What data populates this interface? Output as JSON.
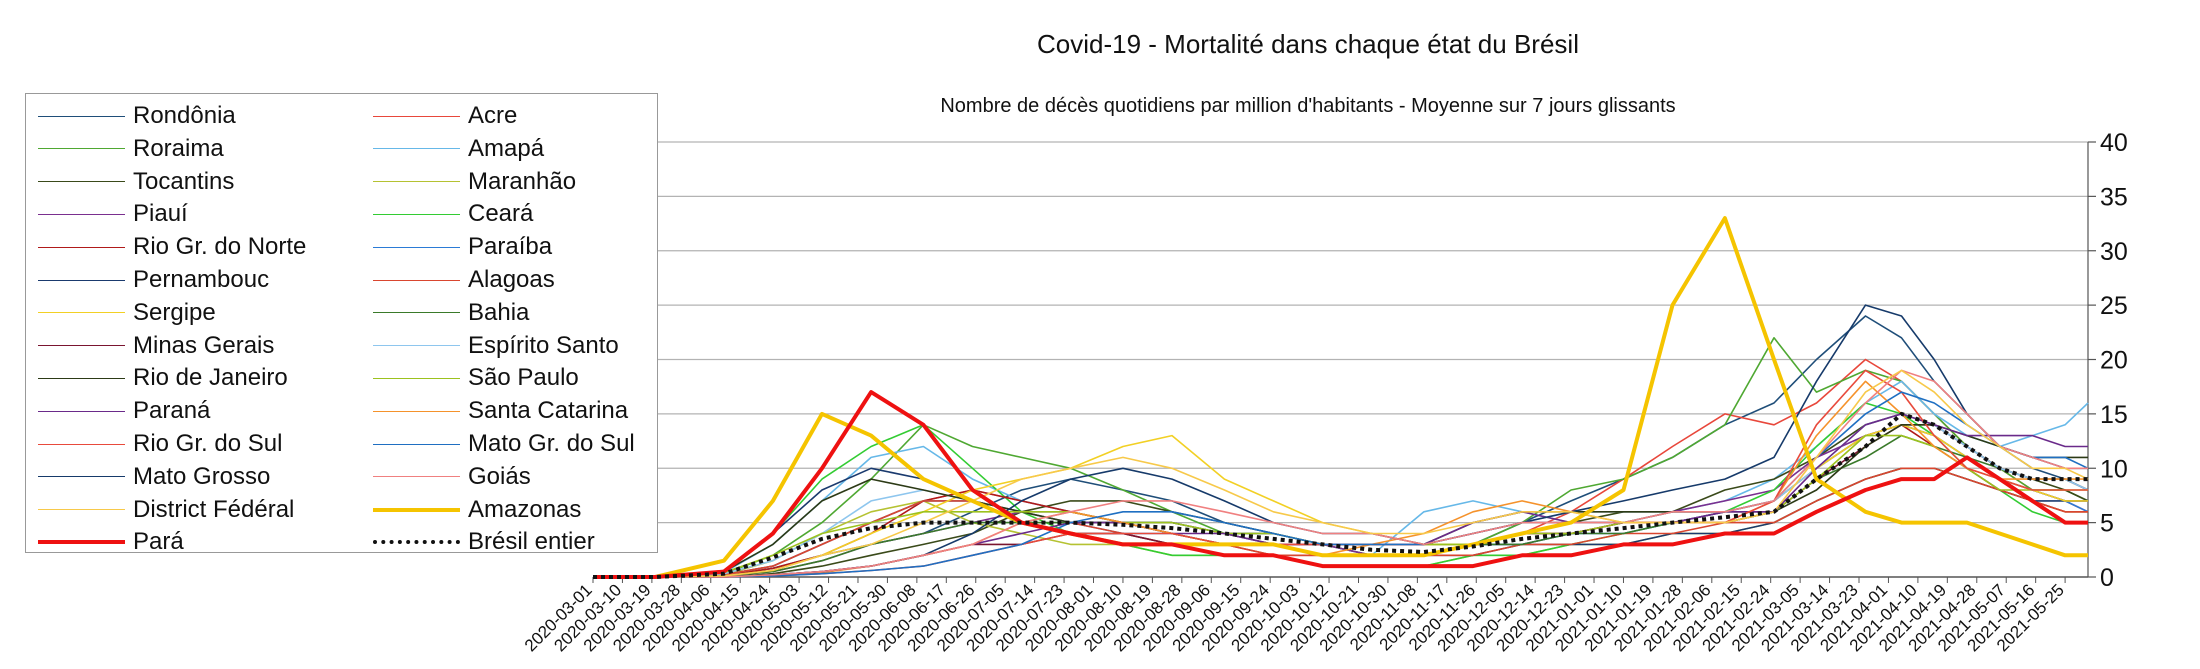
{
  "chart_data": {
    "type": "line",
    "title": "Covid-19 - Mortalité dans chaque état du Brésil",
    "subtitle": "Nombre de décès quotidiens par million d'habitants - Moyenne sur 7 jours glissants",
    "ylim": [
      0,
      40
    ],
    "yticks": [
      0,
      5,
      10,
      15,
      20,
      25,
      30,
      35,
      40
    ],
    "y_axis_side": "right",
    "grid": "horizontal",
    "legend_position": "left",
    "x_tick_labels": [
      "2020-03-01",
      "2020-03-10",
      "2020-03-19",
      "2020-03-28",
      "2020-04-06",
      "2020-04-15",
      "2020-04-24",
      "2020-05-03",
      "2020-05-12",
      "2020-05-21",
      "2020-05-30",
      "2020-06-08",
      "2020-06-17",
      "2020-06-26",
      "2020-07-05",
      "2020-07-14",
      "2020-07-23",
      "2020-08-01",
      "2020-08-10",
      "2020-08-19",
      "2020-08-28",
      "2020-09-06",
      "2020-09-15",
      "2020-09-24",
      "2020-10-03",
      "2020-10-12",
      "2020-10-21",
      "2020-10-30",
      "2020-11-08",
      "2020-11-17",
      "2020-11-26",
      "2020-12-05",
      "2020-12-14",
      "2020-12-23",
      "2021-01-01",
      "2021-01-10",
      "2021-01-19",
      "2021-01-28",
      "2021-02-06",
      "2021-02-15",
      "2021-02-24",
      "2021-03-05",
      "2021-03-14",
      "2021-03-23",
      "2021-04-01",
      "2021-04-10",
      "2021-04-19",
      "2021-04-28",
      "2021-05-07",
      "2021-05-16",
      "2021-05-25"
    ],
    "x_points": [
      "2020-03-01",
      "2020-03-20",
      "2020-04-10",
      "2020-04-25",
      "2020-05-10",
      "2020-05-25",
      "2020-06-10",
      "2020-06-25",
      "2020-07-10",
      "2020-07-25",
      "2020-08-10",
      "2020-08-25",
      "2020-09-10",
      "2020-09-25",
      "2020-10-10",
      "2020-10-25",
      "2020-11-10",
      "2020-11-25",
      "2020-12-10",
      "2020-12-25",
      "2021-01-10",
      "2021-01-25",
      "2021-02-10",
      "2021-02-25",
      "2021-03-10",
      "2021-03-25",
      "2021-04-05",
      "2021-04-15",
      "2021-04-25",
      "2021-05-05",
      "2021-05-15",
      "2021-05-25",
      "2021-06-01"
    ],
    "series": [
      {
        "name": "Rondônia",
        "color": "#1f4e79",
        "width": 1.6,
        "values": [
          0,
          0,
          0.1,
          0.8,
          2,
          3,
          4,
          6,
          8,
          9,
          8,
          7,
          5,
          4,
          3,
          2,
          2,
          3,
          5,
          7,
          9,
          11,
          14,
          16,
          20,
          24,
          22,
          18,
          15,
          12,
          10,
          9,
          8
        ]
      },
      {
        "name": "Acre",
        "color": "#e8473b",
        "width": 1.6,
        "values": [
          0,
          0,
          0.2,
          1,
          3,
          5,
          7,
          8,
          7,
          6,
          5,
          4,
          3,
          3,
          2,
          2,
          2,
          3,
          4,
          6,
          9,
          12,
          15,
          14,
          16,
          20,
          18,
          15,
          12,
          10,
          8,
          7,
          6
        ]
      },
      {
        "name": "Roraima",
        "color": "#4fa832",
        "width": 1.6,
        "values": [
          0,
          0,
          0.3,
          2,
          5,
          9,
          14,
          12,
          11,
          10,
          8,
          6,
          4,
          3,
          3,
          2,
          2,
          3,
          5,
          8,
          9,
          11,
          14,
          22,
          17,
          19,
          18,
          15,
          12,
          10,
          8,
          8,
          7
        ]
      },
      {
        "name": "Amapá",
        "color": "#66b8e8",
        "width": 1.6,
        "values": [
          0,
          0,
          0.4,
          3,
          7,
          11,
          12,
          9,
          7,
          6,
          5,
          4,
          3,
          3,
          2,
          2,
          6,
          7,
          6,
          5,
          5,
          6,
          7,
          9,
          12,
          16,
          18,
          15,
          13,
          12,
          13,
          14,
          16
        ]
      },
      {
        "name": "Tocantins",
        "color": "#3a4a1a",
        "width": 1.6,
        "values": [
          0,
          0,
          0,
          0.3,
          1,
          2,
          3,
          4,
          6,
          7,
          7,
          6,
          5,
          4,
          3,
          3,
          3,
          3,
          4,
          5,
          6,
          6,
          8,
          9,
          11,
          14,
          15,
          14,
          12,
          10,
          9,
          8,
          7
        ]
      },
      {
        "name": "Maranhão",
        "color": "#b5c232",
        "width": 1.6,
        "values": [
          0,
          0,
          0.2,
          1.5,
          4,
          6,
          7,
          5,
          4,
          3,
          3,
          2,
          2,
          2,
          1,
          1,
          1,
          2,
          2,
          3,
          3,
          4,
          4,
          5,
          7,
          9,
          10,
          10,
          9,
          8,
          7,
          6,
          6
        ]
      },
      {
        "name": "Piauí",
        "color": "#7a2f8f",
        "width": 1.6,
        "values": [
          0,
          0,
          0.1,
          0.5,
          1.5,
          3,
          4,
          5,
          6,
          6,
          5,
          5,
          4,
          3,
          3,
          2,
          2,
          3,
          3,
          4,
          5,
          6,
          7,
          8,
          11,
          13,
          14,
          13,
          11,
          9,
          8,
          7,
          7
        ]
      },
      {
        "name": "Ceará",
        "color": "#33cc33",
        "width": 1.6,
        "values": [
          0,
          0,
          0.5,
          4,
          9,
          12,
          14,
          10,
          6,
          4,
          3,
          2,
          2,
          2,
          1,
          1,
          1,
          2,
          2,
          3,
          4,
          5,
          6,
          8,
          12,
          16,
          15,
          13,
          10,
          8,
          6,
          5,
          5
        ]
      },
      {
        "name": "Rio Gr. do Norte",
        "color": "#b01a1a",
        "width": 1.6,
        "values": [
          0,
          0,
          0.1,
          0.8,
          2,
          4,
          7,
          8,
          7,
          6,
          5,
          4,
          3,
          2,
          2,
          2,
          2,
          3,
          4,
          4,
          5,
          5,
          6,
          7,
          10,
          13,
          14,
          12,
          10,
          8,
          7,
          6,
          6
        ]
      },
      {
        "name": "Paraíba",
        "color": "#2b7bd6",
        "width": 1.6,
        "values": [
          0,
          0,
          0.2,
          1,
          3,
          5,
          7,
          7,
          6,
          5,
          4,
          4,
          3,
          3,
          2,
          2,
          2,
          3,
          3,
          4,
          4,
          5,
          6,
          7,
          10,
          13,
          14,
          13,
          11,
          9,
          8,
          7,
          6
        ]
      },
      {
        "name": "Pernambouc",
        "color": "#1a3a6e",
        "width": 1.6,
        "values": [
          0,
          0,
          0.6,
          4,
          8,
          10,
          9,
          7,
          5,
          4,
          4,
          3,
          3,
          3,
          2,
          2,
          2,
          2,
          3,
          3,
          3,
          4,
          4,
          5,
          7,
          9,
          10,
          10,
          9,
          8,
          7,
          7,
          7
        ]
      },
      {
        "name": "Alagoas",
        "color": "#d9462f",
        "width": 1.6,
        "values": [
          0,
          0,
          0.2,
          1,
          3,
          5,
          7,
          7,
          6,
          5,
          4,
          3,
          3,
          2,
          2,
          2,
          2,
          2,
          3,
          3,
          4,
          4,
          5,
          5,
          7,
          9,
          10,
          10,
          9,
          8,
          7,
          6,
          6
        ]
      },
      {
        "name": "Sergipe",
        "color": "#f2d024",
        "width": 1.6,
        "values": [
          0,
          0,
          0.1,
          0.6,
          2,
          4,
          6,
          8,
          9,
          10,
          12,
          13,
          9,
          7,
          5,
          4,
          3,
          3,
          4,
          5,
          5,
          6,
          6,
          7,
          10,
          13,
          14,
          13,
          11,
          9,
          8,
          7,
          7
        ]
      },
      {
        "name": "Bahia",
        "color": "#3a7a2a",
        "width": 1.6,
        "values": [
          0,
          0,
          0.1,
          0.5,
          1.5,
          3,
          4,
          5,
          5,
          5,
          5,
          4,
          3,
          3,
          2,
          2,
          2,
          3,
          3,
          4,
          4,
          5,
          5,
          6,
          9,
          11,
          13,
          12,
          11,
          10,
          9,
          9,
          8
        ]
      },
      {
        "name": "Minas Gerais",
        "color": "#7a1530",
        "width": 1.6,
        "values": [
          0,
          0,
          0,
          0.2,
          0.5,
          1,
          2,
          3,
          3,
          4,
          4,
          3,
          3,
          3,
          2,
          2,
          2,
          3,
          4,
          4,
          5,
          5,
          5,
          6,
          9,
          12,
          14,
          14,
          12,
          10,
          9,
          9,
          8
        ]
      },
      {
        "name": "Espírito Santo",
        "color": "#8ec6ee",
        "width": 1.6,
        "values": [
          0,
          0,
          0.3,
          1.5,
          4,
          7,
          8,
          7,
          6,
          5,
          5,
          5,
          4,
          4,
          3,
          3,
          3,
          4,
          5,
          6,
          6,
          6,
          6,
          7,
          10,
          14,
          15,
          14,
          12,
          10,
          9,
          9,
          8
        ]
      },
      {
        "name": "Rio de Janeiro",
        "color": "#2c3a16",
        "width": 1.6,
        "values": [
          0,
          0,
          0.5,
          3,
          7,
          9,
          8,
          7,
          6,
          5,
          5,
          5,
          4,
          4,
          3,
          3,
          3,
          5,
          6,
          6,
          6,
          6,
          6,
          6,
          8,
          12,
          14,
          14,
          13,
          12,
          11,
          11,
          11
        ]
      },
      {
        "name": "São Paulo",
        "color": "#9cc21e",
        "width": 1.6,
        "values": [
          0,
          0,
          0.4,
          2,
          4,
          5,
          6,
          6,
          6,
          6,
          5,
          5,
          4,
          4,
          3,
          3,
          3,
          3,
          4,
          4,
          5,
          5,
          5,
          6,
          9,
          13,
          13,
          12,
          10,
          8,
          8,
          8,
          8
        ]
      },
      {
        "name": "Paraná",
        "color": "#6a2a8a",
        "width": 1.6,
        "values": [
          0,
          0,
          0,
          0.2,
          0.5,
          1,
          2,
          3,
          4,
          5,
          5,
          4,
          4,
          3,
          3,
          3,
          3,
          5,
          6,
          5,
          5,
          5,
          6,
          6,
          10,
          14,
          15,
          14,
          13,
          13,
          13,
          12,
          12
        ]
      },
      {
        "name": "Santa Catarina",
        "color": "#f5922b",
        "width": 1.6,
        "values": [
          0,
          0,
          0,
          0.2,
          0.4,
          1,
          2,
          3,
          5,
          6,
          5,
          4,
          3,
          3,
          2,
          3,
          4,
          6,
          7,
          6,
          5,
          5,
          5,
          7,
          13,
          18,
          15,
          12,
          10,
          9,
          9,
          9,
          9
        ]
      },
      {
        "name": "Rio Gr. do Sul",
        "color": "#e84a3c",
        "width": 1.6,
        "values": [
          0,
          0,
          0,
          0.1,
          0.3,
          0.6,
          1,
          2,
          3,
          4,
          4,
          4,
          3,
          3,
          3,
          3,
          3,
          4,
          5,
          5,
          5,
          5,
          5,
          7,
          14,
          19,
          17,
          13,
          10,
          9,
          8,
          8,
          8
        ]
      },
      {
        "name": "Mato Gr. do Sul",
        "color": "#1f6fc2",
        "width": 1.6,
        "values": [
          0,
          0,
          0,
          0.1,
          0.3,
          0.6,
          1,
          2,
          3,
          5,
          6,
          6,
          5,
          4,
          3,
          3,
          3,
          4,
          5,
          5,
          5,
          6,
          6,
          7,
          11,
          15,
          17,
          16,
          14,
          12,
          11,
          11,
          10
        ]
      },
      {
        "name": "Mato Grosso",
        "color": "#163a6a",
        "width": 1.6,
        "values": [
          0,
          0,
          0,
          0.2,
          0.5,
          1,
          2,
          4,
          7,
          9,
          10,
          9,
          7,
          5,
          4,
          4,
          3,
          4,
          5,
          6,
          7,
          8,
          9,
          11,
          18,
          25,
          24,
          20,
          15,
          12,
          11,
          10,
          10
        ]
      },
      {
        "name": "Goiás",
        "color": "#f08080",
        "width": 1.6,
        "values": [
          0,
          0,
          0,
          0.2,
          0.5,
          1,
          2,
          3,
          5,
          6,
          7,
          7,
          6,
          5,
          4,
          4,
          3,
          4,
          5,
          5,
          5,
          6,
          6,
          7,
          11,
          16,
          19,
          18,
          15,
          12,
          11,
          10,
          10
        ]
      },
      {
        "name": "District Fédéral",
        "color": "#f7c94a",
        "width": 1.6,
        "values": [
          0,
          0,
          0.1,
          0.6,
          2,
          3,
          5,
          7,
          9,
          10,
          11,
          10,
          8,
          6,
          5,
          4,
          4,
          5,
          6,
          6,
          5,
          5,
          5,
          6,
          11,
          17,
          19,
          17,
          14,
          12,
          10,
          10,
          9
        ]
      },
      {
        "name": "Amazonas",
        "color": "#f5c400",
        "width": 4,
        "values": [
          0,
          0,
          1.5,
          7,
          15,
          13,
          9,
          7,
          5,
          4,
          3,
          3,
          3,
          3,
          2,
          2,
          2,
          3,
          4,
          5,
          8,
          25,
          33,
          20,
          9,
          6,
          5,
          5,
          5,
          4,
          3,
          2,
          2
        ]
      },
      {
        "name": "Pará",
        "color": "#ee1111",
        "width": 4,
        "values": [
          0,
          0,
          0.5,
          4,
          10,
          17,
          14,
          8,
          5,
          4,
          3,
          3,
          2,
          2,
          1,
          1,
          1,
          1,
          2,
          2,
          3,
          3,
          4,
          4,
          6,
          8,
          9,
          9,
          11,
          9,
          7,
          5,
          5
        ]
      },
      {
        "name": "Brésil entier",
        "color": "#111111",
        "width": 4,
        "dash": "4,4",
        "values": [
          0,
          0,
          0.3,
          1.8,
          3.5,
          4.5,
          5,
          5,
          5,
          5,
          4.8,
          4.5,
          4,
          3.5,
          3,
          2.5,
          2.3,
          2.8,
          3.5,
          4,
          4.5,
          5,
          5.5,
          6,
          9,
          12,
          15,
          14,
          12,
          10,
          9,
          9,
          9
        ]
      }
    ]
  }
}
